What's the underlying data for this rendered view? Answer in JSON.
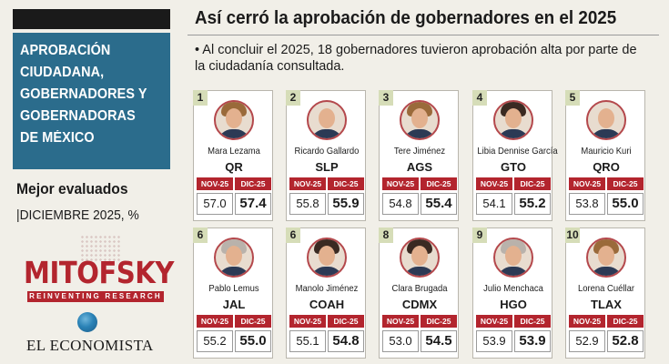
{
  "left_panel": {
    "title_lines": [
      "APROBACIÓN",
      "CIUDADANA,",
      "GOBERNADORES Y",
      "GOBERNADORAS",
      "DE MÉXICO"
    ],
    "best_rated": "Mejor evaluados",
    "period": "|DICIEMBRE 2025, %",
    "pollster_name": "MITOFSKY",
    "pollster_tagline": "REINVENTING RESEARCH",
    "publisher": "EL ECONOMISTA"
  },
  "headline": "Así cerró la aprobación de  gobernadores en el 2025",
  "subtitle": "• Al concluir el 2025, 18 gobernadores tuvieron aprobación alta por parte de la ciudadanía consultada.",
  "column_labels": {
    "nov": "NOV-25",
    "dic": "DIC-25"
  },
  "governors": [
    {
      "rank": "1",
      "name": "Mara Lezama",
      "state": "QR",
      "nov": "57.0",
      "dic": "57.4"
    },
    {
      "rank": "2",
      "name": "Ricardo Gallardo",
      "state": "SLP",
      "nov": "55.8",
      "dic": "55.9"
    },
    {
      "rank": "3",
      "name": "Tere Jiménez",
      "state": "AGS",
      "nov": "54.8",
      "dic": "55.4"
    },
    {
      "rank": "4",
      "name": "Libia Dennise García",
      "state": "GTO",
      "nov": "54.1",
      "dic": "55.2"
    },
    {
      "rank": "5",
      "name": "Mauricio Kuri",
      "state": "QRO",
      "nov": "53.8",
      "dic": "55.0"
    },
    {
      "rank": "6",
      "name": "Pablo Lemus",
      "state": "JAL",
      "nov": "55.2",
      "dic": "55.0"
    },
    {
      "rank": "6",
      "name": "Manolo Jiménez",
      "state": "COAH",
      "nov": "55.1",
      "dic": "54.8"
    },
    {
      "rank": "8",
      "name": "Clara Brugada",
      "state": "CDMX",
      "nov": "53.0",
      "dic": "54.5"
    },
    {
      "rank": "9",
      "name": "Julio Menchaca",
      "state": "HGO",
      "nov": "53.9",
      "dic": "53.9"
    },
    {
      "rank": "10",
      "name": "Lorena Cuéllar",
      "state": "TLAX",
      "nov": "52.9",
      "dic": "52.8"
    }
  ]
}
